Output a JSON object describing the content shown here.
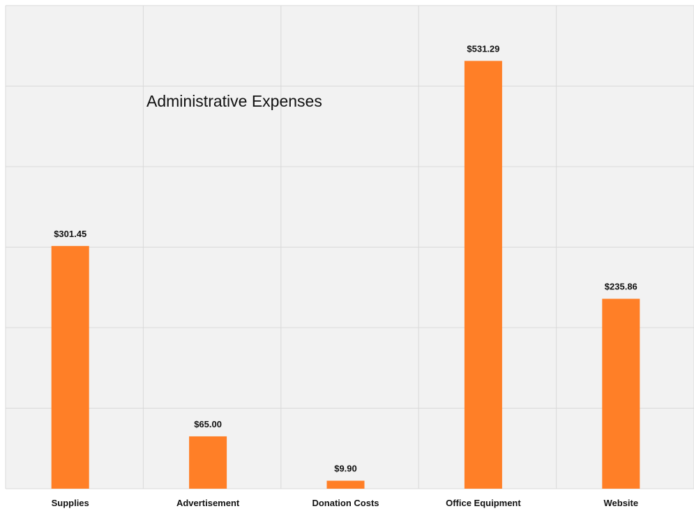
{
  "chart_data": {
    "type": "bar",
    "title": "Administrative Expenses",
    "categories": [
      "Supplies",
      "Advertisement",
      "Donation Costs",
      "Office Equipment",
      "Website"
    ],
    "values": [
      301.45,
      65.0,
      9.9,
      531.29,
      235.86
    ],
    "value_labels": [
      "$301.45",
      "$65.00",
      "$9.90",
      "$531.29",
      "$235.86"
    ],
    "xlabel": "",
    "ylabel": "",
    "ylim": [
      0,
      600
    ],
    "grid": true,
    "legend": "none",
    "bar_color": "#FF7F27",
    "grid_color": "#D9D9D9",
    "background_color": "#F2F2F2"
  }
}
